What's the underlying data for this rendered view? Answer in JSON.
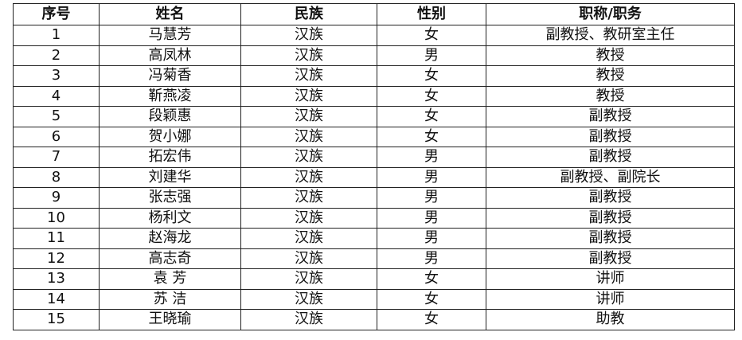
{
  "headers": [
    "序号",
    "姓名",
    "民族",
    "性别",
    "职称/职务"
  ],
  "rows": [
    [
      "1",
      "马慧芳",
      "汉族",
      "女",
      "副教授、教研室主任"
    ],
    [
      "2",
      "高凤林",
      "汉族",
      "男",
      "教授"
    ],
    [
      "3",
      "冯菊香",
      "汉族",
      "女",
      "教授"
    ],
    [
      "4",
      "靳燕凌",
      "汉族",
      "女",
      "教授"
    ],
    [
      "5",
      "段颖惠",
      "汉族",
      "女",
      "副教授"
    ],
    [
      "6",
      "贺小娜",
      "汉族",
      "女",
      "副教授"
    ],
    [
      "7",
      "拓宏伟",
      "汉族",
      "男",
      "副教授"
    ],
    [
      "8",
      "刘建华",
      "汉族",
      "男",
      "副教授、副院长"
    ],
    [
      "9",
      "张志强",
      "汉族",
      "男",
      "副教授"
    ],
    [
      "10",
      "杨利文",
      "汉族",
      "男",
      "副教授"
    ],
    [
      "11",
      "赵海龙",
      "汉族",
      "男",
      "副教授"
    ],
    [
      "12",
      "高志奇",
      "汉族",
      "男",
      "副教授"
    ],
    [
      "13",
      "袁 芳",
      "汉族",
      "女",
      "讲师"
    ],
    [
      "14",
      "苏 洁",
      "汉族",
      "女",
      "讲师"
    ],
    [
      "15",
      "王晓瑜",
      "汉族",
      "女",
      "助教"
    ]
  ]
}
